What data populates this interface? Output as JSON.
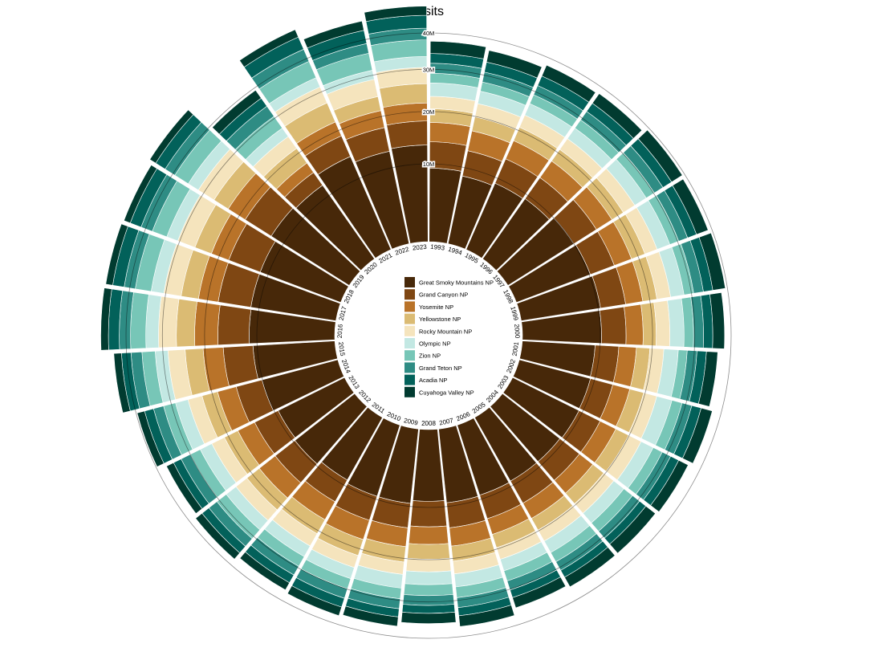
{
  "chart_data": {
    "type": "radial-stacked-bar",
    "title": "Visits",
    "years": [
      "1993",
      "1994",
      "1995",
      "1996",
      "1997",
      "1998",
      "1999",
      "2000",
      "2001",
      "2002",
      "2003",
      "2004",
      "2005",
      "2006",
      "2007",
      "2008",
      "2009",
      "2010",
      "2011",
      "2012",
      "2013",
      "2014",
      "2015",
      "2016",
      "2017",
      "2018",
      "2019",
      "2020",
      "2021",
      "2022",
      "2023"
    ],
    "radial_ticks": [
      "10M",
      "20M",
      "30M",
      "40M"
    ],
    "radial_tick_values": [
      10,
      20,
      30,
      40
    ],
    "y_max": 40,
    "unit": "millions of visits",
    "series": [
      {
        "name": "Great Smoky Mountains NP",
        "color": "#472809",
        "values": [
          9.3,
          8.6,
          9.1,
          9.3,
          10.0,
          10.2,
          10.4,
          10.2,
          9.2,
          9.3,
          9.4,
          9.2,
          9.2,
          9.3,
          9.4,
          9.0,
          9.5,
          9.5,
          9.0,
          9.7,
          9.4,
          10.1,
          10.7,
          11.3,
          11.4,
          11.4,
          12.5,
          12.1,
          14.2,
          12.9,
          13.3
        ]
      },
      {
        "name": "Grand Canyon NP",
        "color": "#7f4713",
        "values": [
          4.6,
          4.4,
          4.6,
          4.5,
          4.8,
          4.6,
          4.6,
          4.4,
          4.1,
          4.0,
          4.1,
          4.3,
          4.4,
          4.3,
          4.4,
          4.4,
          4.3,
          4.4,
          4.3,
          4.4,
          4.6,
          4.8,
          5.5,
          5.9,
          6.3,
          6.4,
          6.0,
          2.9,
          4.5,
          4.7,
          4.7
        ]
      },
      {
        "name": "Yosemite NP",
        "color": "#b97329",
        "values": [
          3.8,
          3.9,
          3.9,
          4.0,
          3.7,
          3.7,
          3.5,
          3.4,
          3.4,
          3.4,
          3.4,
          3.3,
          3.4,
          3.2,
          3.6,
          3.4,
          3.7,
          4.0,
          4.0,
          4.0,
          3.7,
          3.9,
          4.2,
          5.0,
          4.3,
          4.0,
          4.4,
          2.3,
          3.3,
          3.7,
          3.9
        ]
      },
      {
        "name": "Yellowstone NP",
        "color": "#dbbb73",
        "values": [
          2.9,
          3.0,
          3.1,
          3.0,
          2.9,
          3.1,
          3.1,
          2.8,
          2.8,
          3.0,
          3.0,
          2.9,
          2.8,
          2.9,
          3.2,
          3.1,
          3.3,
          3.6,
          3.4,
          3.4,
          3.2,
          3.5,
          4.1,
          4.3,
          4.1,
          4.1,
          4.0,
          3.8,
          4.9,
          3.3,
          4.5
        ]
      },
      {
        "name": "Rocky Mountain NP",
        "color": "#f5e4bd",
        "values": [
          2.8,
          3.0,
          3.0,
          3.0,
          3.1,
          3.0,
          3.2,
          3.1,
          3.1,
          3.0,
          3.1,
          2.8,
          2.8,
          2.7,
          2.9,
          2.8,
          2.8,
          2.9,
          3.2,
          3.2,
          3.2,
          3.4,
          4.2,
          4.5,
          4.4,
          4.6,
          4.7,
          3.3,
          4.4,
          4.3,
          4.1
        ]
      },
      {
        "name": "Olympic NP",
        "color": "#c3e8e3",
        "values": [
          3.2,
          3.0,
          3.0,
          3.1,
          3.3,
          3.3,
          3.3,
          3.4,
          3.4,
          3.7,
          3.2,
          3.0,
          3.1,
          2.8,
          3.1,
          3.0,
          3.3,
          2.8,
          2.9,
          3.0,
          3.1,
          3.2,
          3.3,
          3.4,
          3.4,
          3.1,
          3.2,
          2.5,
          2.7,
          2.4,
          2.9
        ]
      },
      {
        "name": "Zion NP",
        "color": "#77c6b7",
        "values": [
          2.4,
          2.3,
          2.4,
          2.5,
          2.4,
          2.4,
          2.5,
          2.4,
          2.2,
          2.6,
          2.5,
          2.7,
          2.6,
          2.6,
          2.7,
          2.7,
          2.7,
          2.7,
          2.8,
          3.0,
          2.8,
          3.2,
          3.6,
          4.3,
          4.5,
          4.3,
          4.5,
          3.6,
          5.0,
          4.7,
          4.6
        ]
      },
      {
        "name": "Grand Teton NP",
        "color": "#2e8c84",
        "values": [
          2.6,
          2.6,
          2.6,
          2.7,
          2.7,
          2.5,
          2.6,
          2.6,
          2.5,
          2.6,
          2.4,
          2.3,
          2.5,
          2.4,
          2.6,
          2.5,
          2.6,
          2.6,
          2.6,
          2.7,
          2.7,
          2.8,
          3.1,
          3.3,
          3.3,
          3.5,
          3.4,
          3.3,
          3.9,
          2.8,
          3.4
        ]
      },
      {
        "name": "Acadia NP",
        "color": "#02615a",
        "values": [
          2.6,
          2.7,
          2.8,
          2.7,
          2.8,
          2.6,
          2.6,
          2.5,
          2.5,
          2.6,
          2.4,
          2.1,
          2.1,
          2.1,
          2.2,
          2.1,
          2.2,
          2.5,
          2.4,
          2.4,
          2.3,
          2.6,
          2.8,
          3.3,
          3.5,
          3.5,
          3.4,
          2.7,
          4.1,
          4.0,
          3.9
        ]
      },
      {
        "name": "Cuyahoga Valley NP",
        "color": "#013b30",
        "values": [
          3.4,
          3.3,
          3.3,
          3.3,
          3.6,
          3.5,
          3.6,
          3.3,
          3.1,
          3.2,
          2.9,
          3.3,
          3.0,
          2.9,
          3.0,
          2.8,
          2.6,
          2.5,
          2.3,
          2.3,
          2.2,
          2.2,
          2.3,
          2.4,
          2.2,
          2.1,
          2.2,
          2.8,
          2.6,
          2.9,
          2.9
        ]
      }
    ]
  }
}
